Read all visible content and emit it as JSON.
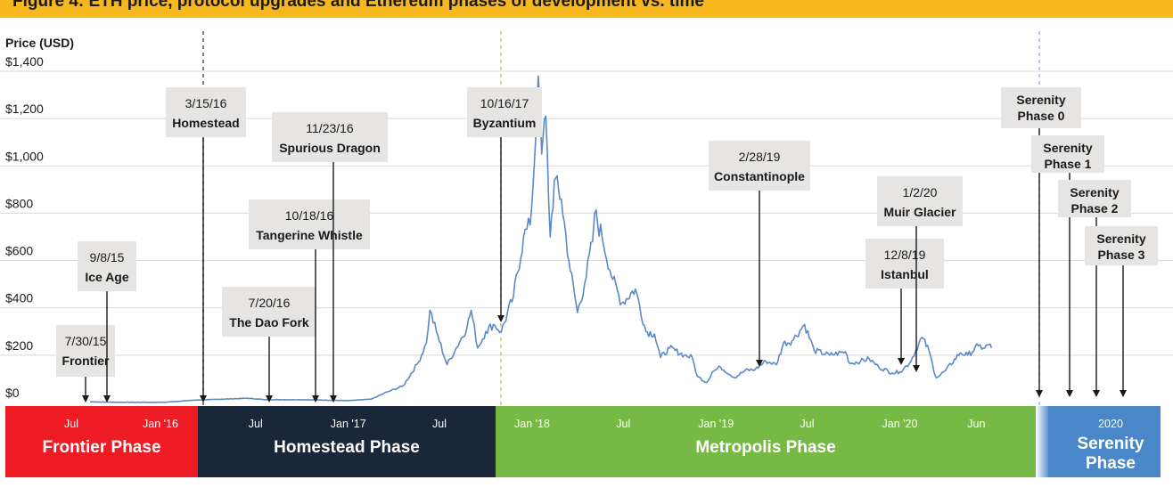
{
  "header": {
    "title": "Figure 4: ETH price, protocol upgrades and Ethereum phases of development vs. time"
  },
  "chart_data": {
    "type": "line",
    "ylabel": "Price (USD)",
    "ylim": [
      0,
      1400
    ],
    "yticks": [
      {
        "value": 0,
        "label": "$0"
      },
      {
        "value": 200,
        "label": "$200"
      },
      {
        "value": 400,
        "label": "$400"
      },
      {
        "value": 600,
        "label": "$600"
      },
      {
        "value": 800,
        "label": "$800"
      },
      {
        "value": 1000,
        "label": "$1,000"
      },
      {
        "value": 1200,
        "label": "$1,200"
      },
      {
        "value": 1400,
        "label": "$1,400"
      }
    ],
    "xlim": [
      "2015-05-01",
      "2020-12-31"
    ],
    "xticks": [
      {
        "date": "2015-07-01",
        "label": "Jul"
      },
      {
        "date": "2016-01-01",
        "label": "Jan '16"
      },
      {
        "date": "2016-07-01",
        "label": "Jul"
      },
      {
        "date": "2017-01-01",
        "label": "Jan '17"
      },
      {
        "date": "2017-07-01",
        "label": "Jul"
      },
      {
        "date": "2018-01-01",
        "label": "Jan '18"
      },
      {
        "date": "2018-07-01",
        "label": "Jul"
      },
      {
        "date": "2019-01-01",
        "label": "Jan '19"
      },
      {
        "date": "2019-07-01",
        "label": "Jul"
      },
      {
        "date": "2020-01-01",
        "label": "Jan '20"
      },
      {
        "date": "2020-06-01",
        "label": "Jun"
      },
      {
        "date": "2020-09-01",
        "label": "2020"
      }
    ],
    "series": [
      {
        "color": "#5b89c8",
        "points": [
          [
            "2015-08-07",
            3
          ],
          [
            "2015-10-01",
            1
          ],
          [
            "2016-01-01",
            1
          ],
          [
            "2016-03-01",
            10
          ],
          [
            "2016-06-15",
            18
          ],
          [
            "2016-07-20",
            12
          ],
          [
            "2016-10-01",
            12
          ],
          [
            "2017-01-01",
            8
          ],
          [
            "2017-02-15",
            14
          ],
          [
            "2017-03-20",
            45
          ],
          [
            "2017-04-20",
            70
          ],
          [
            "2017-05-20",
            170
          ],
          [
            "2017-06-05",
            250
          ],
          [
            "2017-06-12",
            390
          ],
          [
            "2017-06-25",
            300
          ],
          [
            "2017-07-16",
            160
          ],
          [
            "2017-08-01",
            220
          ],
          [
            "2017-08-25",
            320
          ],
          [
            "2017-09-02",
            390
          ],
          [
            "2017-09-15",
            230
          ],
          [
            "2017-10-01",
            300
          ],
          [
            "2017-10-16",
            330
          ],
          [
            "2017-11-01",
            300
          ],
          [
            "2017-11-25",
            450
          ],
          [
            "2017-12-15",
            700
          ],
          [
            "2017-12-28",
            750
          ],
          [
            "2018-01-05",
            1000
          ],
          [
            "2018-01-13",
            1380
          ],
          [
            "2018-01-20",
            1050
          ],
          [
            "2018-01-28",
            1210
          ],
          [
            "2018-02-06",
            700
          ],
          [
            "2018-02-14",
            940
          ],
          [
            "2018-02-28",
            860
          ],
          [
            "2018-03-15",
            600
          ],
          [
            "2018-04-01",
            380
          ],
          [
            "2018-04-15",
            500
          ],
          [
            "2018-05-01",
            680
          ],
          [
            "2018-05-05",
            800
          ],
          [
            "2018-05-20",
            700
          ],
          [
            "2018-06-10",
            520
          ],
          [
            "2018-06-28",
            420
          ],
          [
            "2018-07-25",
            480
          ],
          [
            "2018-08-15",
            300
          ],
          [
            "2018-09-01",
            290
          ],
          [
            "2018-09-13",
            190
          ],
          [
            "2018-10-01",
            230
          ],
          [
            "2018-10-30",
            200
          ],
          [
            "2018-11-15",
            190
          ],
          [
            "2018-11-25",
            110
          ],
          [
            "2018-12-14",
            85
          ],
          [
            "2018-12-25",
            130
          ],
          [
            "2019-01-10",
            150
          ],
          [
            "2019-02-07",
            105
          ],
          [
            "2019-02-28",
            135
          ],
          [
            "2019-03-20",
            140
          ],
          [
            "2019-04-10",
            175
          ],
          [
            "2019-05-01",
            160
          ],
          [
            "2019-05-15",
            250
          ],
          [
            "2019-06-01",
            260
          ],
          [
            "2019-06-26",
            330
          ],
          [
            "2019-07-15",
            220
          ],
          [
            "2019-08-15",
            200
          ],
          [
            "2019-09-15",
            215
          ],
          [
            "2019-09-24",
            165
          ],
          [
            "2019-10-15",
            175
          ],
          [
            "2019-11-01",
            185
          ],
          [
            "2019-11-20",
            150
          ],
          [
            "2019-12-17",
            125
          ],
          [
            "2020-01-01",
            130
          ],
          [
            "2020-01-20",
            165
          ],
          [
            "2020-02-14",
            275
          ],
          [
            "2020-02-28",
            220
          ],
          [
            "2020-03-12",
            110
          ],
          [
            "2020-03-16",
            108
          ],
          [
            "2020-04-01",
            135
          ],
          [
            "2020-04-30",
            210
          ],
          [
            "2020-05-15",
            200
          ],
          [
            "2020-06-05",
            240
          ],
          [
            "2020-06-15",
            230
          ],
          [
            "2020-06-26",
            245
          ],
          [
            "2020-07-01",
            230
          ]
        ]
      }
    ],
    "annotations": [
      {
        "date": "2015-07-30",
        "date_label": "7/30/15",
        "name": "Frontier"
      },
      {
        "date": "2015-09-08",
        "date_label": "9/8/15",
        "name": "Ice Age"
      },
      {
        "date": "2016-03-15",
        "date_label": "3/15/16",
        "name": "Homestead"
      },
      {
        "date": "2016-07-20",
        "date_label": "7/20/16",
        "name": "The Dao Fork"
      },
      {
        "date": "2016-10-18",
        "date_label": "10/18/16",
        "name": "Tangerine Whistle"
      },
      {
        "date": "2016-11-23",
        "date_label": "11/23/16",
        "name": "Spurious Dragon"
      },
      {
        "date": "2017-10-16",
        "date_label": "10/16/17",
        "name": "Byzantium"
      },
      {
        "date": "2019-02-28",
        "date_label": "2/28/19",
        "name": "Constantinople"
      },
      {
        "date": "2019-12-08",
        "date_label": "12/8/19",
        "name": "Istanbul"
      },
      {
        "date": "2020-01-02",
        "date_label": "1/2/20",
        "name": "Muir Glacier"
      },
      {
        "name_lines": [
          "Serenity",
          "Phase 0"
        ]
      },
      {
        "name_lines": [
          "Serenity",
          "Phase 1"
        ]
      },
      {
        "name_lines": [
          "Serenity",
          "Phase 2"
        ]
      },
      {
        "name_lines": [
          "Serenity",
          "Phase 3"
        ]
      }
    ],
    "phases": [
      {
        "label": "Frontier Phase",
        "color": "#ed1b24"
      },
      {
        "label": "Homestead Phase",
        "color": "#1a2738"
      },
      {
        "label": "Metropolis Phase",
        "color": "#76b944"
      },
      {
        "label_lines": [
          "Serenity",
          "Phase"
        ],
        "color": "#4a87c9"
      }
    ]
  }
}
